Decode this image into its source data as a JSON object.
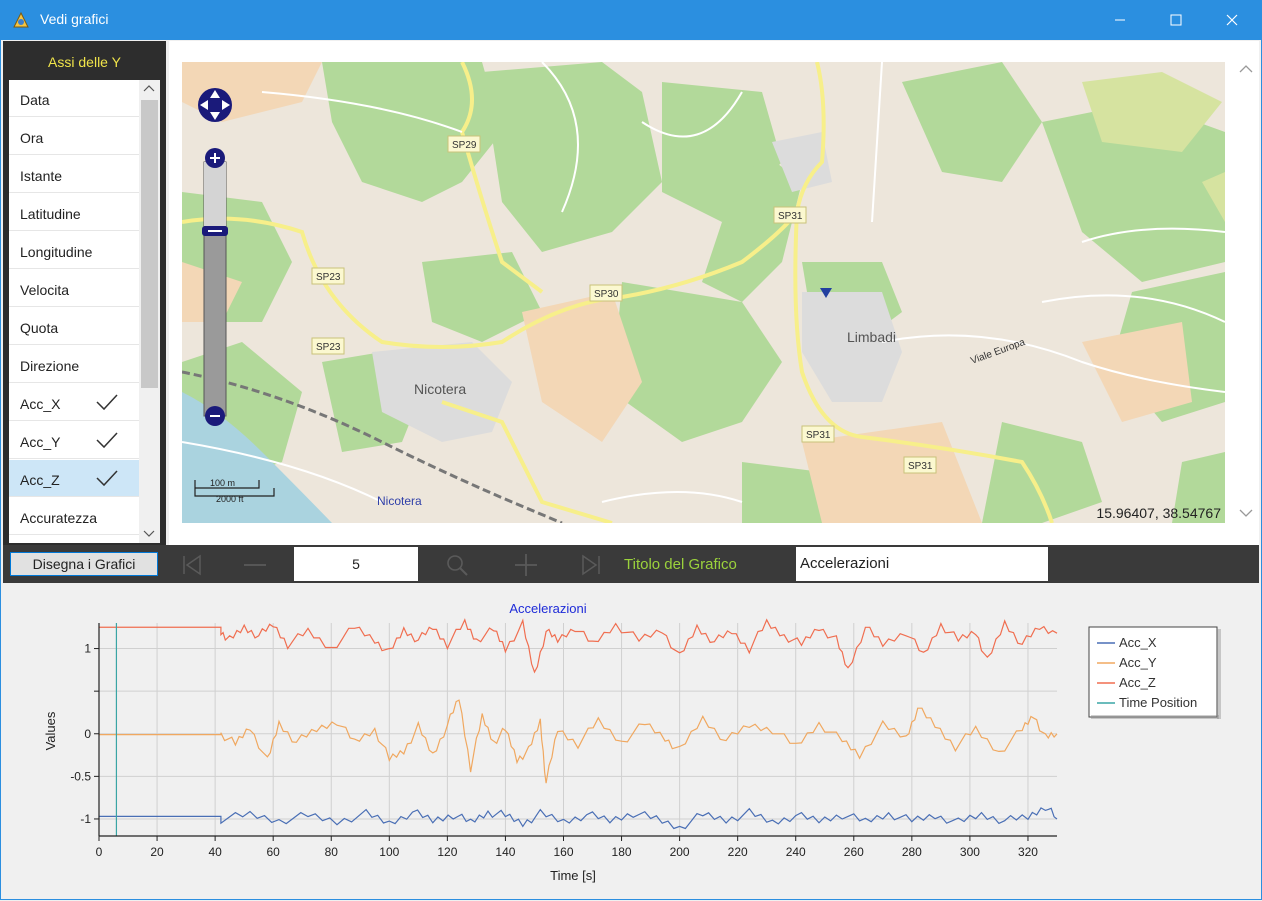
{
  "window": {
    "title": "Vedi grafici",
    "icons": [
      "app-icon",
      "minimize-icon",
      "maximize-icon",
      "close-icon"
    ]
  },
  "left_panel": {
    "title": "Assi delle Y",
    "items": [
      {
        "label": "Data",
        "checked": false,
        "selected": false
      },
      {
        "label": "Ora",
        "checked": false,
        "selected": false
      },
      {
        "label": "Istante",
        "checked": false,
        "selected": false
      },
      {
        "label": "Latitudine",
        "checked": false,
        "selected": false
      },
      {
        "label": "Longitudine",
        "checked": false,
        "selected": false
      },
      {
        "label": "Velocita",
        "checked": false,
        "selected": false
      },
      {
        "label": "Quota",
        "checked": false,
        "selected": false
      },
      {
        "label": "Direzione",
        "checked": false,
        "selected": false
      },
      {
        "label": "Acc_X",
        "checked": true,
        "selected": false
      },
      {
        "label": "Acc_Y",
        "checked": true,
        "selected": false
      },
      {
        "label": "Acc_Z",
        "checked": true,
        "selected": true
      },
      {
        "label": "Accuratezza",
        "checked": false,
        "selected": false
      }
    ]
  },
  "map": {
    "coordinates": "15.96407, 38.54767",
    "place_labels": [
      "Nicotera",
      "Limbadi",
      "Nicotera"
    ],
    "road_labels": [
      "SP29",
      "SP31",
      "SP23",
      "SP23",
      "SP30",
      "SP31",
      "SP31",
      "Viale Europa"
    ],
    "scale": {
      "metric": "100 m",
      "imperial": "2000 ft"
    },
    "controls": [
      "pan-control-icon",
      "zoom-in-icon",
      "zoom-out-icon"
    ]
  },
  "toolbar": {
    "draw_button": "Disegna i Grafici",
    "step_value": "5",
    "chart_title_label": "Titolo del Grafico",
    "chart_title_value": "Accelerazioni",
    "icons": [
      "skip-start-icon",
      "minus-icon",
      "search-icon",
      "plus-icon",
      "skip-end-icon"
    ]
  },
  "chart_data": {
    "type": "line",
    "title": "Accelerazioni",
    "xlabel": "Time [s]",
    "ylabel": "Values",
    "xlim": [
      0,
      330
    ],
    "ylim": [
      -1.2,
      1.3
    ],
    "xticks": [
      0,
      20,
      40,
      60,
      80,
      100,
      120,
      140,
      160,
      180,
      200,
      220,
      240,
      260,
      280,
      300,
      320
    ],
    "yticks": [
      {
        "v": 1,
        "label": "1"
      },
      {
        "v": 0.5,
        "label": ""
      },
      {
        "v": 0,
        "label": "0"
      },
      {
        "v": -0.5,
        "label": "-0.5"
      },
      {
        "v": -1,
        "label": "-1"
      }
    ],
    "grid": true,
    "legend_position": "right",
    "time_position": 6,
    "series": [
      {
        "name": "Acc_X",
        "color": "#4a6fb5",
        "baseline": -0.98,
        "quiet_level": -0.97,
        "x": [
          42,
          52,
          62,
          72,
          82,
          92,
          100,
          108,
          115,
          122,
          128,
          134,
          140,
          146,
          152,
          160,
          168,
          176,
          184,
          192,
          200,
          208,
          216,
          224,
          232,
          240,
          248,
          256,
          264,
          272,
          280,
          288,
          296,
          304,
          312,
          320,
          326,
          330
        ],
        "y": [
          -1.0,
          -0.95,
          -1.02,
          -0.96,
          -1.03,
          -0.94,
          -1.05,
          -0.92,
          -1.02,
          -0.95,
          -1.04,
          -0.92,
          -0.96,
          -1.05,
          -0.94,
          -1.03,
          -0.95,
          -1.02,
          -0.93,
          -1.0,
          -1.1,
          -0.95,
          -1.01,
          -0.93,
          -1.04,
          -0.96,
          -1.02,
          -0.95,
          -1.03,
          -0.94,
          -1.02,
          -0.96,
          -1.04,
          -0.95,
          -1.02,
          -0.98,
          -0.85,
          -1.0
        ]
      },
      {
        "name": "Acc_Y",
        "color": "#f0a860",
        "baseline": 0.0,
        "quiet_level": -0.01,
        "x": [
          42,
          47,
          52,
          58,
          62,
          68,
          75,
          82,
          88,
          95,
          100,
          105,
          110,
          115,
          120,
          124,
          128,
          132,
          136,
          140,
          144,
          148,
          152,
          154,
          158,
          165,
          172,
          180,
          188,
          195,
          200,
          208,
          216,
          224,
          232,
          240,
          248,
          256,
          262,
          270,
          278,
          282,
          288,
          295,
          302,
          310,
          318,
          322,
          326,
          330
        ],
        "y": [
          0.0,
          -0.12,
          0.08,
          -0.32,
          0.12,
          -0.1,
          0.05,
          0.15,
          -0.1,
          0.05,
          -0.3,
          -0.2,
          0.08,
          -0.25,
          0.1,
          0.42,
          -0.4,
          0.2,
          -0.1,
          0.05,
          -0.3,
          -0.2,
          0.15,
          -0.58,
          0.05,
          -0.12,
          0.15,
          -0.1,
          0.12,
          -0.05,
          -0.2,
          0.18,
          -0.08,
          0.1,
          0.05,
          -0.15,
          0.12,
          -0.08,
          -0.25,
          0.1,
          -0.05,
          0.3,
          0.1,
          -0.15,
          0.05,
          -0.22,
          0.05,
          0.22,
          -0.05,
          0.0
        ]
      },
      {
        "name": "Acc_Z",
        "color": "#f06e50",
        "baseline": 1.25,
        "quiet_level": 1.25,
        "x": [
          42,
          45,
          50,
          55,
          60,
          65,
          72,
          80,
          88,
          95,
          100,
          105,
          110,
          115,
          120,
          126,
          130,
          136,
          140,
          146,
          150,
          154,
          158,
          164,
          170,
          178,
          186,
          194,
          200,
          206,
          212,
          218,
          224,
          230,
          236,
          242,
          248,
          254,
          258,
          264,
          270,
          278,
          284,
          290,
          296,
          302,
          306,
          312,
          318,
          324,
          330
        ],
        "y": [
          1.2,
          1.1,
          1.25,
          1.15,
          1.28,
          1.05,
          1.2,
          1.0,
          1.25,
          1.1,
          0.95,
          1.22,
          1.1,
          1.25,
          1.05,
          1.3,
          1.1,
          1.22,
          1.0,
          1.28,
          0.7,
          1.2,
          1.1,
          1.25,
          1.05,
          1.28,
          1.1,
          1.22,
          0.9,
          1.25,
          1.08,
          1.2,
          1.0,
          1.3,
          1.15,
          1.05,
          1.25,
          1.1,
          0.75,
          1.25,
          1.05,
          1.2,
          0.92,
          1.28,
          1.1,
          1.2,
          0.85,
          1.3,
          1.05,
          1.25,
          1.18
        ]
      },
      {
        "name": "Time Position",
        "color": "#3aa5a5"
      }
    ]
  }
}
